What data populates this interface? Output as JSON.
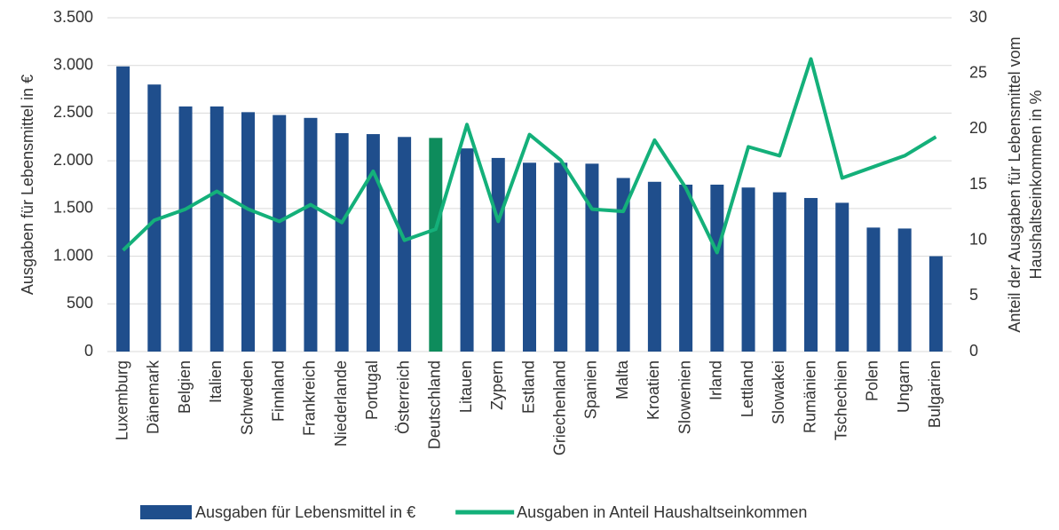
{
  "chart_data": {
    "type": "bar-line",
    "ylabel": "Ausgaben für Lebensmittel in €",
    "y2label": [
      "Anteil der Ausgaben für Lebensmittel vom",
      "Haushaltseinkommen in %"
    ],
    "categories": [
      "Luxemburg",
      "Dänemark",
      "Belgien",
      "Italien",
      "Schweden",
      "Finnland",
      "Frankreich",
      "Niederlande",
      "Portugal",
      "Österreich",
      "Deutschland",
      "Litauen",
      "Zypern",
      "Estland",
      "Griechenland",
      "Spanien",
      "Malta",
      "Kroatien",
      "Slowenien",
      "Irland",
      "Lettland",
      "Slowakei",
      "Rumänien",
      "Tschechien",
      "Polen",
      "Ungarn",
      "Bulgarien"
    ],
    "series": [
      {
        "name": "Ausgaben für Lebensmittel in €",
        "type": "bar",
        "color": "#1f4e8c",
        "colors": [
          "#1f4e8c",
          "#1f4e8c",
          "#1f4e8c",
          "#1f4e8c",
          "#1f4e8c",
          "#1f4e8c",
          "#1f4e8c",
          "#1f4e8c",
          "#1f4e8c",
          "#1f4e8c",
          "#0e8c5c",
          "#1f4e8c",
          "#1f4e8c",
          "#1f4e8c",
          "#1f4e8c",
          "#1f4e8c",
          "#1f4e8c",
          "#1f4e8c",
          "#1f4e8c",
          "#1f4e8c",
          "#1f4e8c",
          "#1f4e8c",
          "#1f4e8c",
          "#1f4e8c",
          "#1f4e8c",
          "#1f4e8c",
          "#1f4e8c"
        ],
        "values": [
          2990,
          2800,
          2570,
          2570,
          2510,
          2480,
          2450,
          2290,
          2280,
          2250,
          2240,
          2130,
          2030,
          1980,
          1980,
          1970,
          1820,
          1780,
          1750,
          1750,
          1720,
          1670,
          1610,
          1560,
          1300,
          1290,
          1000
        ]
      },
      {
        "name": "Ausgaben in Anteil Haushaltseinkommen",
        "type": "line",
        "axis": "y2",
        "color": "#14b07a",
        "values": [
          9.1,
          11.8,
          12.8,
          14.4,
          12.8,
          11.7,
          13.2,
          11.6,
          16.2,
          10.0,
          11.0,
          20.4,
          11.7,
          19.5,
          17.2,
          12.8,
          12.6,
          19.0,
          14.7,
          8.9,
          18.4,
          17.6,
          26.3,
          15.6,
          16.6,
          17.6,
          19.3
        ]
      }
    ],
    "ylim": [
      0,
      3500
    ],
    "yticks": [
      0,
      500,
      {
        "value": 1000,
        "label": "1.000"
      },
      {
        "value": 1500,
        "label": "1.500"
      },
      {
        "value": 2000,
        "label": "2.000"
      },
      {
        "value": 2500,
        "label": "2.500"
      },
      {
        "value": 3000,
        "label": "3.000"
      },
      {
        "value": 3500,
        "label": "3.500"
      }
    ],
    "y2lim": [
      0,
      30
    ],
    "y2ticks": [
      0,
      5,
      10,
      15,
      20,
      25,
      30
    ],
    "grid": true
  }
}
